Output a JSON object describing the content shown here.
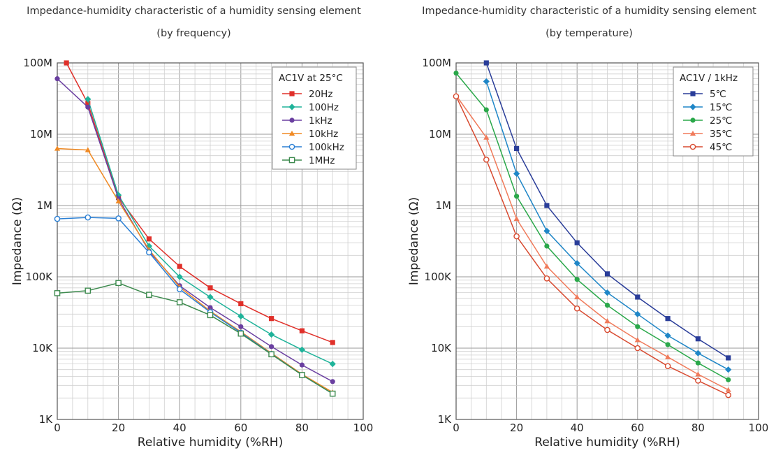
{
  "chart_data": [
    {
      "type": "line",
      "title": "Impedance-humidity characteristic of a humidity sensing element",
      "subtitle": "(by frequency)",
      "xlabel": "Relative humidity (%RH)",
      "ylabel": "Impedance (Ω)",
      "xlim": [
        0,
        100
      ],
      "ylim": [
        1000,
        100000000
      ],
      "yscale": "log",
      "xticks": [
        0,
        20,
        40,
        60,
        80,
        100
      ],
      "xtick_labels": [
        "0",
        "20",
        "40",
        "60",
        "80",
        "100"
      ],
      "yticks": [
        1000,
        10000,
        100000,
        1000000,
        10000000,
        100000000
      ],
      "ytick_labels": [
        "1K",
        "10K",
        "100K",
        "1M",
        "10M",
        "100M"
      ],
      "grid": true,
      "legend_title": "AC1V at 25°C",
      "legend_position": "top-right",
      "series": [
        {
          "name": "20Hz",
          "color": "#e0302a",
          "marker": "square",
          "x": [
            3,
            10,
            20,
            30,
            40,
            50,
            60,
            70,
            80,
            90
          ],
          "y": [
            100000000,
            27000000,
            1300000,
            340000,
            140000,
            70000,
            42000,
            26000,
            17500,
            12000
          ]
        },
        {
          "name": "100Hz",
          "color": "#1fb39a",
          "marker": "diamond",
          "x": [
            10,
            20,
            30,
            40,
            50,
            60,
            70,
            80,
            90
          ],
          "y": [
            31000000,
            1400000,
            270000,
            100000,
            52000,
            28000,
            15500,
            9500,
            6000
          ]
        },
        {
          "name": "1kHz",
          "color": "#6a3fa0",
          "marker": "circle",
          "x": [
            0,
            10,
            20,
            30,
            40,
            50,
            60,
            70,
            80,
            90
          ],
          "y": [
            60000000,
            24000000,
            1250000,
            230000,
            75000,
            37000,
            20000,
            10500,
            5800,
            3400
          ]
        },
        {
          "name": "10kHz",
          "color": "#f08a24",
          "marker": "triangle",
          "x": [
            0,
            10,
            20,
            30,
            40,
            50,
            60,
            70,
            80,
            90
          ],
          "y": [
            6300000,
            6000000,
            1150000,
            240000,
            72000,
            33000,
            17000,
            8500,
            4300,
            2400
          ]
        },
        {
          "name": "100kHz",
          "color": "#2a7fd4",
          "marker": "circle-open",
          "x": [
            0,
            10,
            20,
            30,
            40,
            50,
            60,
            70,
            80,
            90
          ],
          "y": [
            650000,
            680000,
            660000,
            220000,
            67000,
            32000,
            16500,
            8300,
            4200,
            2300
          ]
        },
        {
          "name": "1MHz",
          "color": "#3d8a4e",
          "marker": "square-open",
          "x": [
            0,
            10,
            20,
            30,
            40,
            50,
            60,
            70,
            80,
            90
          ],
          "y": [
            59000,
            64000,
            82000,
            56000,
            44000,
            29000,
            16000,
            8200,
            4200,
            2300
          ]
        }
      ]
    },
    {
      "type": "line",
      "title": "Impedance-humidity characteristic of a humidity sensing element",
      "subtitle": "(by temperature)",
      "xlabel": "Relative humidity (%RH)",
      "ylabel": "Impedance (Ω)",
      "xlim": [
        0,
        100
      ],
      "ylim": [
        1000,
        100000000
      ],
      "yscale": "log",
      "xticks": [
        0,
        20,
        40,
        60,
        80,
        100
      ],
      "xtick_labels": [
        "0",
        "20",
        "40",
        "60",
        "80",
        "100"
      ],
      "yticks": [
        1000,
        10000,
        100000,
        1000000,
        10000000,
        100000000
      ],
      "ytick_labels": [
        "1K",
        "10K",
        "100K",
        "1M",
        "10M",
        "100M"
      ],
      "grid": true,
      "legend_title": "AC1V / 1kHz",
      "legend_position": "top-right",
      "series": [
        {
          "name": "5℃",
          "color": "#2a3d99",
          "marker": "square",
          "x": [
            10,
            20,
            30,
            40,
            50,
            60,
            70,
            80,
            90
          ],
          "y": [
            100000000,
            6300000,
            1000000,
            300000,
            110000,
            52000,
            26000,
            13500,
            7300
          ]
        },
        {
          "name": "15℃",
          "color": "#1f86c7",
          "marker": "diamond",
          "x": [
            10,
            20,
            30,
            40,
            50,
            60,
            70,
            80,
            90
          ],
          "y": [
            55000000,
            2800000,
            440000,
            155000,
            60000,
            30000,
            15000,
            8500,
            5000
          ]
        },
        {
          "name": "25℃",
          "color": "#2aa84a",
          "marker": "circle",
          "x": [
            0,
            10,
            20,
            30,
            40,
            50,
            60,
            70,
            80,
            90
          ],
          "y": [
            72000000,
            22000000,
            1350000,
            270000,
            92000,
            40000,
            20000,
            11200,
            6200,
            3600
          ]
        },
        {
          "name": "35℃",
          "color": "#f07a5a",
          "marker": "triangle",
          "x": [
            0,
            10,
            20,
            30,
            40,
            50,
            60,
            70,
            80,
            90
          ],
          "y": [
            35000000,
            9000000,
            650000,
            140000,
            52000,
            24000,
            13000,
            7500,
            4300,
            2600
          ]
        },
        {
          "name": "45℃",
          "color": "#d84a30",
          "marker": "circle-open",
          "x": [
            0,
            10,
            20,
            30,
            40,
            50,
            60,
            70,
            80,
            90
          ],
          "y": [
            34000000,
            4400000,
            370000,
            95000,
            36000,
            18000,
            10000,
            5600,
            3500,
            2200
          ]
        }
      ]
    }
  ]
}
